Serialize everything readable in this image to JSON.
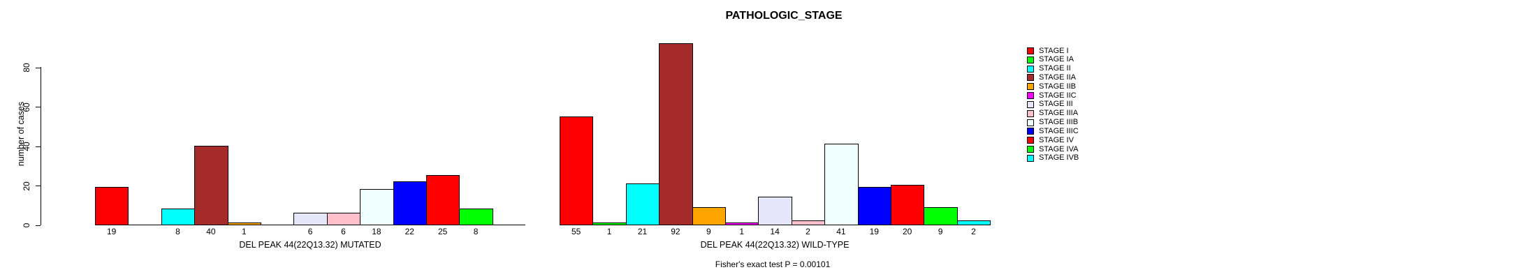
{
  "chart_data": {
    "type": "bar",
    "title": "PATHOLOGIC_STAGE",
    "ylabel": "number of cases",
    "footer": "Fisher's exact test P = 0.00101",
    "y_ticks": [
      0,
      20,
      40,
      60,
      80
    ],
    "ylim": [
      0,
      80
    ],
    "grid": false,
    "legend_position": "right",
    "categories": [
      "STAGE I",
      "STAGE IA",
      "STAGE II",
      "STAGE IIA",
      "STAGE IIB",
      "STAGE IIC",
      "STAGE III",
      "STAGE IIIA",
      "STAGE IIIB",
      "STAGE IIIC",
      "STAGE IV",
      "STAGE IVA",
      "STAGE IVB"
    ],
    "colors": [
      "#FF0000",
      "#00FF00",
      "#00FFFF",
      "#A52A2A",
      "#FFA500",
      "#FF00FF",
      "#E6E6FA",
      "#FFC0CB",
      "#F0FFFF",
      "#0000FF",
      "#FF0000",
      "#00FF00",
      "#00FFFF"
    ],
    "bar_border_color": "#000000",
    "panels": [
      {
        "xlabel": "DEL PEAK 44(22Q13.32) MUTATED",
        "values": [
          19,
          0,
          8,
          40,
          1,
          0,
          6,
          6,
          18,
          22,
          25,
          8,
          0
        ]
      },
      {
        "xlabel": "DEL PEAK 44(22Q13.32) WILD-TYPE",
        "values": [
          55,
          1,
          21,
          92,
          9,
          1,
          14,
          2,
          41,
          19,
          20,
          9,
          2
        ]
      }
    ]
  }
}
